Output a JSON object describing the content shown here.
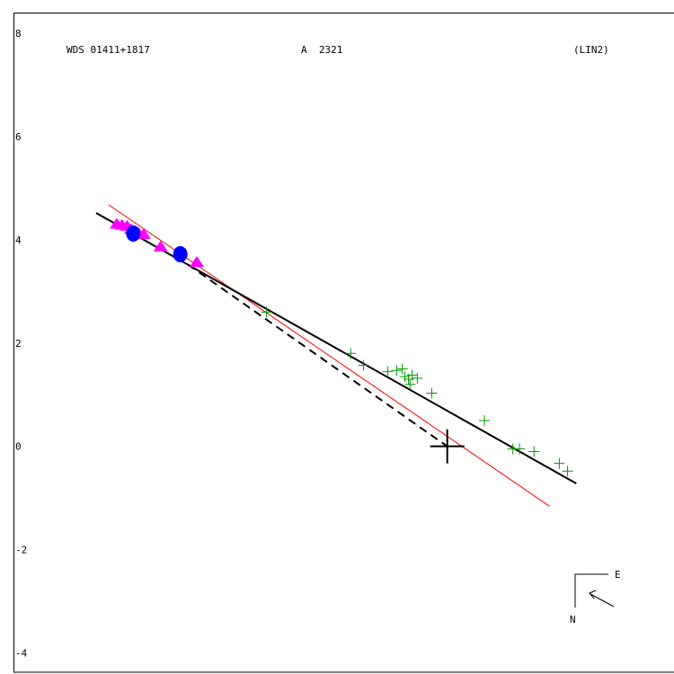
{
  "header": {
    "wds": "WDS 01411+1817",
    "designation": "A  2321",
    "code": "(LIN2)"
  },
  "compass": {
    "east": "E",
    "north": "N"
  },
  "chart_data": {
    "type": "scatter",
    "title": "",
    "xlabel": "",
    "ylabel": "",
    "xlim": [
      -8.4,
      4.6
    ],
    "ylim": [
      -4.6,
      8.4
    ],
    "y_ticks": [
      8,
      6,
      4,
      2,
      0,
      -2,
      -4
    ],
    "y_tick_labels": [
      "8",
      "6",
      "4",
      "2",
      "0",
      "-2",
      "-4"
    ],
    "grid": false,
    "legend": "none",
    "primary": [
      0,
      0
    ],
    "lines": {
      "linear_fit": {
        "color": "#000000",
        "style": "solid",
        "points": [
          [
            -6.8,
            4.52
          ],
          [
            2.5,
            -0.72
          ]
        ]
      },
      "red_line": {
        "color": "#ff0000",
        "style": "solid",
        "points": [
          [
            -6.56,
            4.68
          ],
          [
            1.98,
            -1.16
          ]
        ]
      },
      "connector": {
        "color": "#000000",
        "style": "dashed",
        "points": [
          [
            -5.02,
            3.52
          ],
          [
            0,
            0
          ]
        ]
      }
    },
    "series": [
      {
        "marker": "triangle",
        "color": "#ff00ff",
        "points": [
          [
            -6.4,
            4.32
          ],
          [
            -6.3,
            4.3
          ],
          [
            -6.2,
            4.28
          ],
          [
            -6.12,
            4.22
          ],
          [
            -6.05,
            4.18
          ],
          [
            -5.98,
            4.15
          ],
          [
            -5.88,
            4.12
          ],
          [
            -5.55,
            3.88
          ],
          [
            -4.85,
            3.58
          ]
        ]
      },
      {
        "marker": "circle",
        "color": "#0000ff",
        "points": [
          [
            -6.08,
            4.12
          ],
          [
            -5.17,
            3.72
          ]
        ]
      },
      {
        "marker": "plus",
        "color": "#009900",
        "points": [
          [
            -3.5,
            2.6
          ],
          [
            -1.87,
            1.8
          ],
          [
            -1.62,
            1.57
          ],
          [
            -1.15,
            1.45
          ],
          [
            -0.98,
            1.47
          ],
          [
            -0.87,
            1.5
          ],
          [
            -0.82,
            1.35
          ],
          [
            -0.75,
            1.3
          ],
          [
            -0.68,
            1.38
          ],
          [
            -0.72,
            1.2
          ],
          [
            -0.58,
            1.32
          ],
          [
            -0.3,
            1.03
          ],
          [
            0.72,
            0.5
          ],
          [
            1.27,
            -0.05
          ],
          [
            1.4,
            -0.05
          ],
          [
            1.68,
            -0.1
          ],
          [
            2.17,
            -0.33
          ],
          [
            2.33,
            -0.48
          ]
        ]
      }
    ]
  }
}
